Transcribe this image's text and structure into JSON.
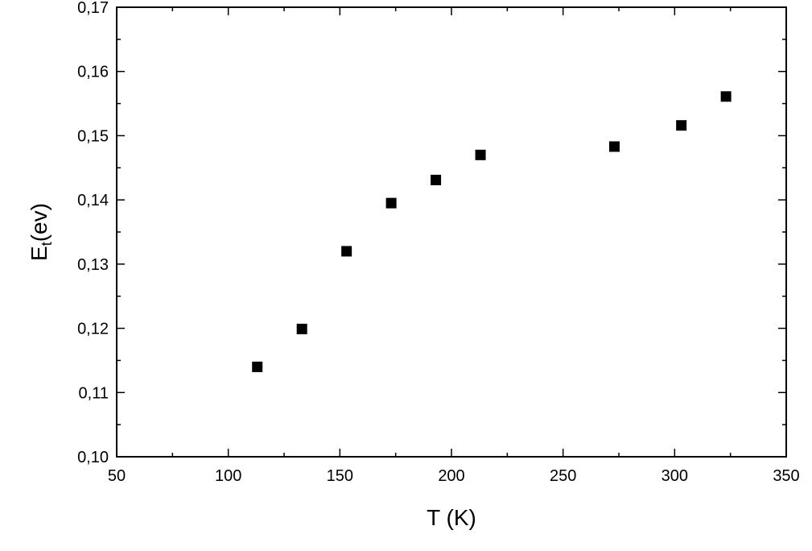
{
  "chart_data": {
    "type": "scatter",
    "title": "",
    "xlabel": "T (K)",
    "ylabel": {
      "main": "E",
      "sub": "t",
      "rest": "(ev)"
    },
    "xlim": [
      50,
      350
    ],
    "ylim": [
      0.1,
      0.17
    ],
    "x_ticks": [
      50,
      100,
      150,
      200,
      250,
      300,
      350
    ],
    "x_tick_labels": [
      "50",
      "100",
      "150",
      "200",
      "250",
      "300",
      "350"
    ],
    "y_ticks": [
      0.1,
      0.11,
      0.12,
      0.13,
      0.14,
      0.15,
      0.16,
      0.17
    ],
    "y_tick_labels": [
      "0,10",
      "0,11",
      "0,12",
      "0,13",
      "0,14",
      "0,15",
      "0,16",
      "0,17"
    ],
    "grid": false,
    "marker": "square",
    "marker_color": "#000000",
    "x": [
      113,
      133,
      153,
      173,
      193,
      213,
      273,
      303,
      323
    ],
    "y": [
      0.114,
      0.1199,
      0.132,
      0.1395,
      0.1431,
      0.147,
      0.1483,
      0.1516,
      0.1561
    ]
  }
}
